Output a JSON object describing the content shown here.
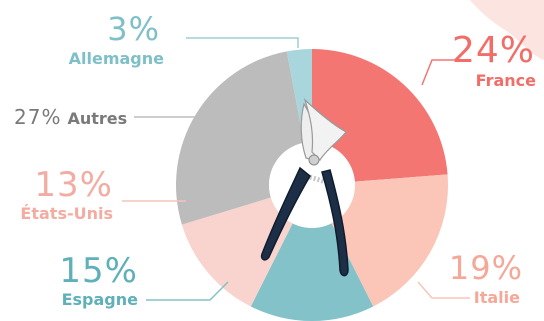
{
  "chart_data": {
    "type": "pie",
    "style": "donut",
    "title": "",
    "slices": [
      {
        "label": "France",
        "value": 24,
        "value_label": "24%",
        "color": "#f47672",
        "text_color": "#f26d67"
      },
      {
        "label": "Italie",
        "value": 19,
        "value_label": "19%",
        "color": "#fbc6b8",
        "text_color": "#f5a898"
      },
      {
        "label": "Espagne",
        "value": 15,
        "value_label": "15%",
        "color": "#83c2c8",
        "text_color": "#5fb0b8"
      },
      {
        "label": "États-Unis",
        "value": 13,
        "value_label": "13%",
        "color": "#f9d3cd",
        "text_color": "#f3aca1"
      },
      {
        "label": "Autres",
        "value": 27,
        "value_label": "27%",
        "color": "#bcbcbc",
        "text_color": "#7a7a7a"
      },
      {
        "label": "Allemagne",
        "value": 3,
        "value_label": "3%",
        "color": "#a9d6dc",
        "text_color": "#7fc0c8"
      }
    ],
    "center_image": "pruning-shears-icon",
    "accent_decoration_color": "#f6b9b2"
  }
}
